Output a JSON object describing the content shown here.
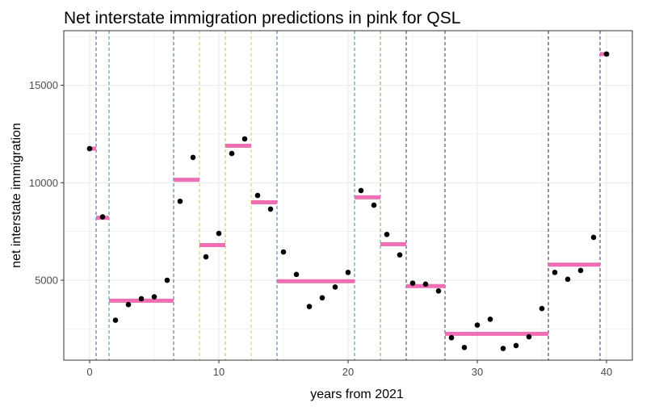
{
  "chart_data": {
    "type": "scatter",
    "title": "Net interstate immigration predictions in pink for QSL",
    "xlabel": "years from 2021",
    "ylabel": "net interstate immigration",
    "xlim": [
      -2,
      42
    ],
    "ylim": [
      900,
      17800
    ],
    "xticks": [
      0,
      10,
      20,
      30,
      40
    ],
    "yticks": [
      5000,
      10000,
      15000
    ],
    "grid": true,
    "colors": {
      "points": "#000000",
      "segments": "#f06eb4",
      "grid": "#ebebeb",
      "border": "#333333"
    },
    "points": {
      "x": [
        0,
        1,
        2,
        3,
        4,
        5,
        6,
        7,
        8,
        9,
        10,
        11,
        12,
        13,
        14,
        15,
        16,
        17,
        18,
        19,
        20,
        21,
        22,
        23,
        24,
        25,
        26,
        27,
        28,
        29,
        30,
        31,
        32,
        33,
        34,
        35,
        36,
        37,
        38,
        39,
        40
      ],
      "y": [
        11750,
        8250,
        2950,
        3750,
        4050,
        4150,
        5000,
        9050,
        11300,
        6200,
        7400,
        11500,
        12250,
        9350,
        8650,
        6450,
        5300,
        3650,
        4100,
        4650,
        5400,
        9600,
        8850,
        7350,
        6300,
        4850,
        4800,
        4450,
        2050,
        1550,
        2700,
        3000,
        1500,
        1650,
        2100,
        3550,
        5400,
        5050,
        5500,
        7200,
        16600
      ]
    },
    "segments": [
      {
        "x0": -0.2,
        "x1": 0.5,
        "y": 11750
      },
      {
        "x0": 0.5,
        "x1": 1.5,
        "y": 8200
      },
      {
        "x0": 1.5,
        "x1": 6.5,
        "y": 3950
      },
      {
        "x0": 6.5,
        "x1": 8.5,
        "y": 10150
      },
      {
        "x0": 8.5,
        "x1": 10.5,
        "y": 6800
      },
      {
        "x0": 10.5,
        "x1": 12.5,
        "y": 11900
      },
      {
        "x0": 12.5,
        "x1": 14.5,
        "y": 9000
      },
      {
        "x0": 14.5,
        "x1": 20.5,
        "y": 4950
      },
      {
        "x0": 20.5,
        "x1": 22.5,
        "y": 9250
      },
      {
        "x0": 22.5,
        "x1": 24.5,
        "y": 6850
      },
      {
        "x0": 24.5,
        "x1": 27.5,
        "y": 4700
      },
      {
        "x0": 27.5,
        "x1": 35.5,
        "y": 2250
      },
      {
        "x0": 35.5,
        "x1": 39.5,
        "y": 5800
      },
      {
        "x0": 39.5,
        "x1": 40.2,
        "y": 16600
      }
    ],
    "breakpoints": [
      {
        "x": 0.5,
        "color": "#3a56a8"
      },
      {
        "x": 1.5,
        "color": "#2aa55a"
      },
      {
        "x": 6.5,
        "color": "#2a6aa8"
      },
      {
        "x": 8.5,
        "color": "#d8c83a"
      },
      {
        "x": 10.5,
        "color": "#a8c83a"
      },
      {
        "x": 12.5,
        "color": "#e8c040"
      },
      {
        "x": 14.5,
        "color": "#2a7ab0"
      },
      {
        "x": 20.5,
        "color": "#2a9a8a"
      },
      {
        "x": 22.5,
        "color": "#5ab84a"
      },
      {
        "x": 24.5,
        "color": "#2a3a78"
      },
      {
        "x": 27.5,
        "color": "#3a3a6a"
      },
      {
        "x": 35.5,
        "color": "#2a1a50"
      },
      {
        "x": 39.5,
        "color": "#5a1a7a"
      }
    ]
  }
}
